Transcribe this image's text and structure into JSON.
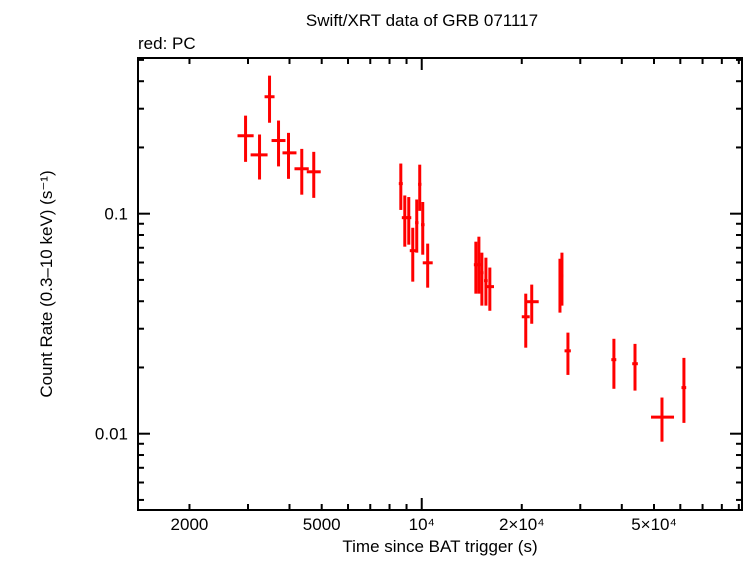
{
  "chart_data": {
    "type": "scatter",
    "title": "Swift/XRT data of GRB 071117",
    "subtitle": "red: PC",
    "xlabel": "Time since BAT trigger (s)",
    "ylabel": "Count Rate (0.3–10 keV) (s⁻¹)",
    "xscale": "log",
    "yscale": "log",
    "xlim": [
      1400,
      92000
    ],
    "ylim": [
      0.0045,
      0.51
    ],
    "grid": false,
    "x_ticks": [
      {
        "value": 2000,
        "label": "2000"
      },
      {
        "value": 5000,
        "label": "5000"
      },
      {
        "value": 10000,
        "label": "10⁴"
      },
      {
        "value": 20000,
        "label": "2×10⁴"
      },
      {
        "value": 50000,
        "label": "5×10⁴"
      }
    ],
    "y_ticks": [
      {
        "value": 0.1,
        "label": "0.1"
      },
      {
        "value": 0.01,
        "label": "0.01"
      }
    ],
    "series": [
      {
        "name": "PC",
        "color": "#ff0000",
        "points": [
          {
            "x": 2950,
            "xlo": 2790,
            "xhi": 3120,
            "y": 0.226,
            "ylo": 0.172,
            "yhi": 0.279
          },
          {
            "x": 3250,
            "xlo": 3055,
            "xhi": 3436,
            "y": 0.185,
            "ylo": 0.143,
            "yhi": 0.229
          },
          {
            "x": 3483,
            "xlo": 3365,
            "xhi": 3606,
            "y": 0.34,
            "ylo": 0.259,
            "yhi": 0.424
          },
          {
            "x": 3707,
            "xlo": 3532,
            "xhi": 3890,
            "y": 0.215,
            "ylo": 0.164,
            "yhi": 0.265
          },
          {
            "x": 3972,
            "xlo": 3810,
            "xhi": 4198,
            "y": 0.189,
            "ylo": 0.144,
            "yhi": 0.233
          },
          {
            "x": 4355,
            "xlo": 4140,
            "xhi": 4571,
            "y": 0.16,
            "ylo": 0.122,
            "yhi": 0.197
          },
          {
            "x": 4732,
            "xlo": 4508,
            "xhi": 4966,
            "y": 0.155,
            "ylo": 0.118,
            "yhi": 0.191
          },
          {
            "x": 8650,
            "xlo": 8531,
            "xhi": 8770,
            "y": 0.137,
            "ylo": 0.104,
            "yhi": 0.169
          },
          {
            "x": 8892,
            "xlo": 8710,
            "xhi": 9141,
            "y": 0.0959,
            "ylo": 0.0708,
            "yhi": 0.121
          },
          {
            "x": 9141,
            "xlo": 9000,
            "xhi": 9300,
            "y": 0.0959,
            "ylo": 0.0723,
            "yhi": 0.119
          },
          {
            "x": 9397,
            "xlo": 9204,
            "xhi": 9660,
            "y": 0.0679,
            "ylo": 0.0491,
            "yhi": 0.0863
          },
          {
            "x": 9660,
            "xlo": 9550,
            "xhi": 9780,
            "y": 0.091,
            "ylo": 0.0665,
            "yhi": 0.116
          },
          {
            "x": 9862,
            "xlo": 9750,
            "xhi": 9980,
            "y": 0.136,
            "ylo": 0.103,
            "yhi": 0.167
          },
          {
            "x": 10070,
            "xlo": 9950,
            "xhi": 10200,
            "y": 0.0891,
            "ylo": 0.0651,
            "yhi": 0.113
          },
          {
            "x": 10420,
            "xlo": 10070,
            "xhi": 10790,
            "y": 0.0598,
            "ylo": 0.0461,
            "yhi": 0.0731
          },
          {
            "x": 14550,
            "xlo": 14350,
            "xhi": 14750,
            "y": 0.0586,
            "ylo": 0.0433,
            "yhi": 0.0746
          },
          {
            "x": 14860,
            "xlo": 14700,
            "xhi": 15020,
            "y": 0.0586,
            "ylo": 0.0433,
            "yhi": 0.0786
          },
          {
            "x": 15170,
            "xlo": 15000,
            "xhi": 15350,
            "y": 0.0539,
            "ylo": 0.0382,
            "yhi": 0.0665
          },
          {
            "x": 15600,
            "xlo": 15400,
            "xhi": 15800,
            "y": 0.0496,
            "ylo": 0.0382,
            "yhi": 0.0631
          },
          {
            "x": 16030,
            "xlo": 15600,
            "xhi": 16500,
            "y": 0.0466,
            "ylo": 0.0362,
            "yhi": 0.0569
          },
          {
            "x": 20560,
            "xlo": 20000,
            "xhi": 21130,
            "y": 0.034,
            "ylo": 0.0246,
            "yhi": 0.0433
          },
          {
            "x": 21430,
            "xlo": 20700,
            "xhi": 22490,
            "y": 0.0398,
            "ylo": 0.0316,
            "yhi": 0.0476
          },
          {
            "x": 26060,
            "xlo": 25800,
            "xhi": 26300,
            "y": 0.0491,
            "ylo": 0.0355,
            "yhi": 0.0624
          },
          {
            "x": 26420,
            "xlo": 26200,
            "xhi": 26650,
            "y": 0.0522,
            "ylo": 0.0382,
            "yhi": 0.0665
          },
          {
            "x": 27540,
            "xlo": 26900,
            "xhi": 28100,
            "y": 0.0238,
            "ylo": 0.0185,
            "yhi": 0.0288
          },
          {
            "x": 37870,
            "xlo": 37200,
            "xhi": 38500,
            "y": 0.0217,
            "ylo": 0.016,
            "yhi": 0.027
          },
          {
            "x": 43830,
            "xlo": 43000,
            "xhi": 44700,
            "y": 0.0208,
            "ylo": 0.0157,
            "yhi": 0.0256
          },
          {
            "x": 52840,
            "xlo": 48980,
            "xhi": 57440,
            "y": 0.0119,
            "ylo": 0.0092,
            "yhi": 0.0146
          },
          {
            "x": 61520,
            "xlo": 60500,
            "xhi": 62500,
            "y": 0.0162,
            "ylo": 0.0112,
            "yhi": 0.0221
          }
        ]
      }
    ]
  }
}
